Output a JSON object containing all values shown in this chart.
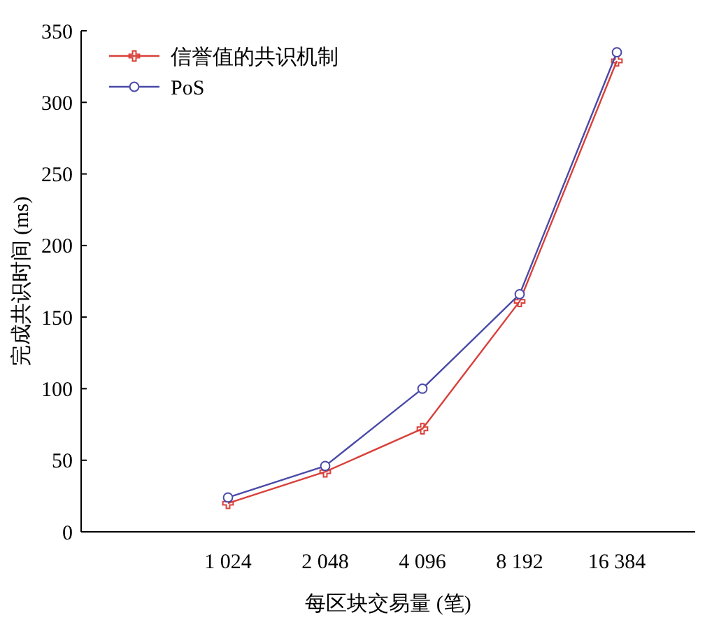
{
  "chart_data": {
    "type": "line",
    "xlabel": "每区块交易量 (笔)",
    "ylabel": "完成共识时间 (ms)",
    "categories": [
      "1 024",
      "2 048",
      "4 096",
      "8 192",
      "16 384"
    ],
    "series": [
      {
        "name": "信誉值的共识机制",
        "color": "#d9403a",
        "marker": "cross",
        "values": [
          20,
          42,
          72,
          161,
          329
        ]
      },
      {
        "name": "PoS",
        "color": "#4a4aa8",
        "marker": "circle",
        "values": [
          24,
          46,
          100,
          166,
          335
        ]
      }
    ],
    "ylim": [
      0,
      350
    ],
    "yticks": [
      0,
      50,
      100,
      150,
      200,
      250,
      300,
      350
    ],
    "grid": false,
    "legend": "top left",
    "line_style": "solid"
  }
}
